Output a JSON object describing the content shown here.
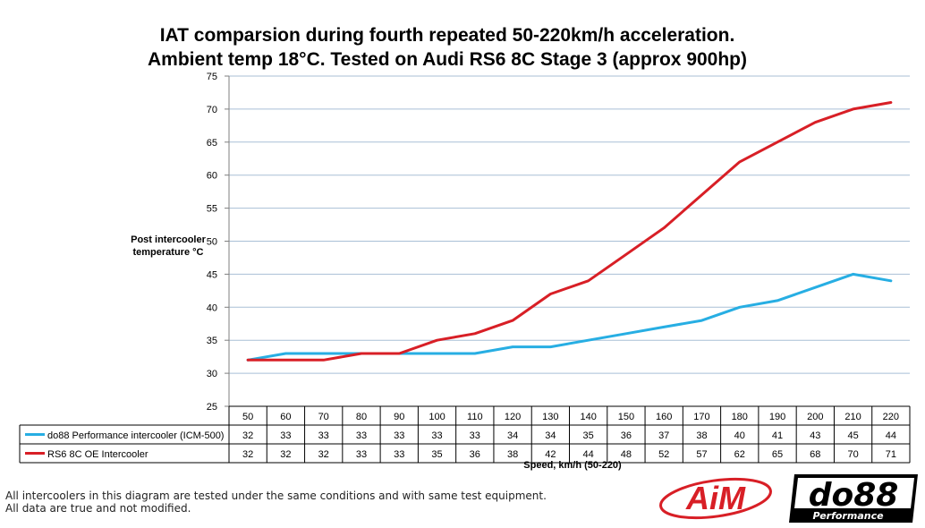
{
  "chart_data": {
    "type": "line",
    "title": [
      "IAT comparsion during fourth repeated 50-220km/h acceleration.",
      "Ambient temp 18°C. Tested on Audi RS6 8C Stage 3 (approx 900hp)"
    ],
    "ylabel": [
      "Post intercooler",
      "temperature °C"
    ],
    "xlabel": "Speed, km/h (50-220)",
    "ylim": [
      25,
      75
    ],
    "yticks": [
      25,
      30,
      35,
      40,
      45,
      50,
      55,
      60,
      65,
      70,
      75
    ],
    "grid": true,
    "legend": "data-table-below",
    "categories": [
      "50",
      "60",
      "70",
      "80",
      "90",
      "100",
      "110",
      "120",
      "130",
      "140",
      "150",
      "160",
      "170",
      "180",
      "190",
      "200",
      "210",
      "220"
    ],
    "series": [
      {
        "name": "do88 Performance intercooler (ICM-500)",
        "color": "#27aee3",
        "values": [
          32,
          33,
          33,
          33,
          33,
          33,
          33,
          34,
          34,
          35,
          36,
          37,
          38,
          40,
          41,
          43,
          45,
          44
        ]
      },
      {
        "name": "RS6 8C OE Intercooler",
        "color": "#d81f26",
        "values": [
          32,
          32,
          32,
          33,
          33,
          35,
          36,
          38,
          42,
          44,
          48,
          52,
          57,
          62,
          65,
          68,
          70,
          71
        ]
      }
    ]
  },
  "footnote": [
    "All intercoolers in this diagram are tested under the same conditions and with same test equipment.",
    "All data are true and not modified."
  ],
  "logos": {
    "aim": "AiM",
    "do88": "do88",
    "do88_tagline": "Performance"
  }
}
